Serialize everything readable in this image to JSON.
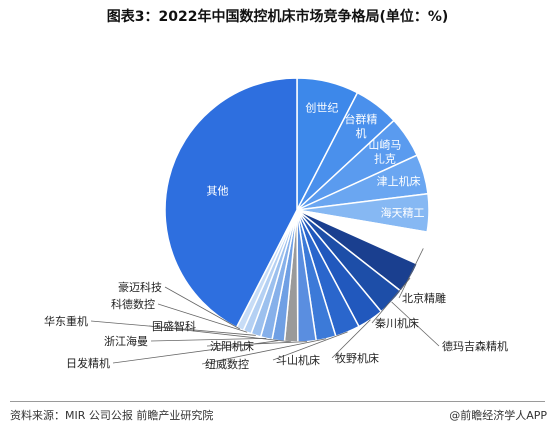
{
  "chart_data": {
    "type": "pie",
    "title": "图表3：2022年中国数控机床市场竞争格局(单位：%)",
    "slices": [
      {
        "label": "创世纪",
        "value": 7.5,
        "color": "#3d88ea",
        "label_mode": "inside"
      },
      {
        "label": "台群精机",
        "value": 5.5,
        "color": "#4a90ec",
        "label_mode": "inside"
      },
      {
        "label": "山崎马扎克",
        "value": 5.0,
        "color": "#5a9bef",
        "label_mode": "inside"
      },
      {
        "label": "津上机床",
        "value": 4.8,
        "color": "#6aa6f1",
        "label_mode": "inside"
      },
      {
        "label": "海天精工",
        "value": 4.6,
        "color": "#86b8f3",
        "label_mode": "inside"
      },
      {
        "label": "北京精雕",
        "value": 4.0,
        "color": "#ffffff",
        "label_mode": "outside"
      },
      {
        "label": "秦川机床",
        "value": 3.8,
        "color": "#1a3f8f",
        "label_mode": "outside"
      },
      {
        "label": "德玛吉森精机",
        "value": 3.4,
        "color": "#1d4ea8",
        "label_mode": "outside"
      },
      {
        "label": "牧野机床",
        "value": 3.2,
        "color": "#2158bd",
        "label_mode": "outside"
      },
      {
        "label": "斗山机床",
        "value": 3.0,
        "color": "#2a66cc",
        "label_mode": "outside"
      },
      {
        "label": "纽威数控",
        "value": 2.4,
        "color": "#3c7ad8",
        "label_mode": "outside"
      },
      {
        "label": "沈阳机床",
        "value": 2.2,
        "color": "#5a8ee0",
        "label_mode": "outside"
      },
      {
        "label": "国盛智科",
        "value": 1.6,
        "color": "#9a9a9a",
        "label_mode": "outside"
      },
      {
        "label": "日发精机",
        "value": 1.5,
        "color": "#6f9fe4",
        "label_mode": "outside"
      },
      {
        "label": "浙江海曼",
        "value": 1.4,
        "color": "#86b0ea",
        "label_mode": "outside"
      },
      {
        "label": "华东重机",
        "value": 1.2,
        "color": "#9cc0ee",
        "label_mode": "outside"
      },
      {
        "label": "科德数控",
        "value": 1.0,
        "color": "#b4d0f3",
        "label_mode": "outside"
      },
      {
        "label": "豪迈科技",
        "value": 0.9,
        "color": "#c7dcf6",
        "label_mode": "outside"
      },
      {
        "label": "其他",
        "value": 42.0,
        "color": "#2e6fdf",
        "label_mode": "inside"
      }
    ],
    "legend": "none"
  },
  "footer": {
    "source": "资料来源：MIR 公司公报 前瞻产业研究院",
    "brand": "@前瞻经济学人APP"
  }
}
